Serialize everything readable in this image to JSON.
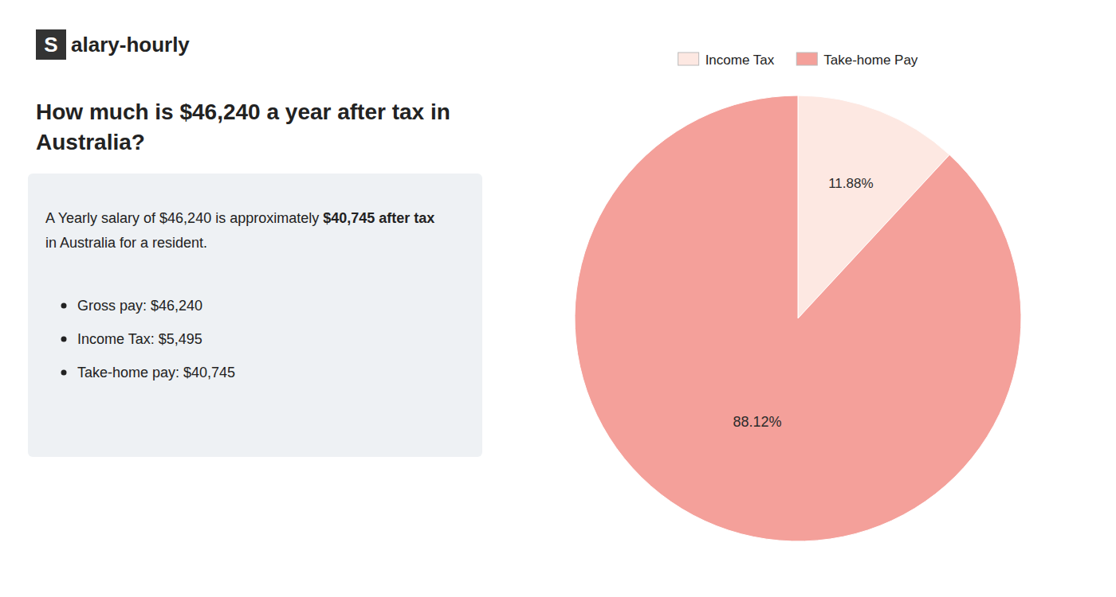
{
  "chart_data": {
    "type": "pie",
    "title": "How much is $46,240 a year after tax in\nAustralia?",
    "annotations": [
      "S",
      "alary-hourly",
      "A Yearly salary of $46,240 is approximately ",
      "$40,745 after tax",
      "in Australia for a resident.",
      "Gross pay: $46,240",
      "Income Tax: $5,495",
      "Take-home pay: $40,745"
    ],
    "categories": [
      "Income Tax",
      "Take-home Pay"
    ],
    "values": [
      11.88,
      88.12
    ],
    "value_labels": [
      "11.88%",
      "88.12%"
    ],
    "colors": [
      "#fde8e2",
      "#f4a09a"
    ],
    "data_labels": true,
    "legend": "top"
  }
}
